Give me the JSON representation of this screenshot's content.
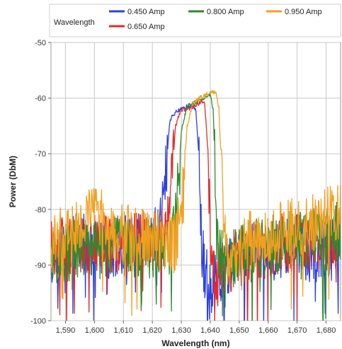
{
  "chart_data": {
    "type": "line",
    "title": "",
    "xlabel": "Wavelength (nm)",
    "ylabel": "Power (DbM)",
    "xlim": [
      1585,
      1685
    ],
    "ylim": [
      -100,
      -50
    ],
    "x_ticks": [
      1590,
      1600,
      1610,
      1620,
      1630,
      1640,
      1650,
      1660,
      1670,
      1680
    ],
    "x_tick_labels": [
      "1,590",
      "1,600",
      "1,610",
      "1,620",
      "1,630",
      "1,640",
      "1,650",
      "1,660",
      "1,670",
      "1,680"
    ],
    "y_ticks": [
      -50,
      -60,
      -70,
      -80,
      -90,
      -100
    ],
    "y_tick_labels": [
      "-50",
      "-60",
      "-70",
      "-80",
      "-90",
      "-100"
    ],
    "grid": true,
    "legend": {
      "title": "Wavelength",
      "placement": "top"
    },
    "series": [
      {
        "name": "0.450 Amp",
        "color": "#2c3fe0",
        "x": [
          1585,
          1595,
          1605,
          1615,
          1622,
          1624,
          1626,
          1628,
          1630,
          1632,
          1634,
          1635,
          1636,
          1637,
          1638,
          1640,
          1645,
          1655,
          1665,
          1675,
          1685
        ],
        "y": [
          -88,
          -86,
          -87,
          -86,
          -85,
          -78,
          -64,
          -62.5,
          -62,
          -61.5,
          -61.5,
          -62,
          -70,
          -86,
          -91,
          -95,
          -90,
          -88,
          -87,
          -88,
          -87
        ]
      },
      {
        "name": "0.650 Amp",
        "color": "#e02b2b",
        "x": [
          1585,
          1595,
          1605,
          1615,
          1624,
          1626,
          1628,
          1630,
          1632,
          1634,
          1636,
          1637,
          1638,
          1639,
          1640,
          1641,
          1645,
          1655,
          1665,
          1675,
          1685
        ],
        "y": [
          -87,
          -86,
          -86,
          -86,
          -85,
          -80,
          -65,
          -62,
          -62,
          -61.5,
          -61,
          -60.5,
          -60.5,
          -68,
          -84,
          -92,
          -90,
          -87,
          -86,
          -86,
          -85
        ]
      },
      {
        "name": "0.800 Amp",
        "color": "#2e8b2e",
        "x": [
          1585,
          1595,
          1605,
          1615,
          1626,
          1628,
          1630,
          1632,
          1634,
          1636,
          1638,
          1640,
          1641,
          1642,
          1643,
          1645,
          1655,
          1665,
          1675,
          1685
        ],
        "y": [
          -88,
          -87,
          -87,
          -87,
          -87,
          -82,
          -66,
          -61.5,
          -61,
          -60.5,
          -60,
          -59.5,
          -62,
          -78,
          -88,
          -90,
          -87,
          -86,
          -85,
          -84
        ]
      },
      {
        "name": "0.950 Amp",
        "color": "#f0a020",
        "x": [
          1585,
          1590,
          1595,
          1600,
          1605,
          1615,
          1628,
          1630,
          1632,
          1634,
          1636,
          1638,
          1640,
          1642,
          1643,
          1644,
          1645,
          1646,
          1655,
          1665,
          1675,
          1685
        ],
        "y": [
          -86,
          -84,
          -82,
          -80,
          -84,
          -85,
          -86,
          -80,
          -65,
          -61,
          -60,
          -59.5,
          -59,
          -59,
          -62,
          -75,
          -86,
          -88,
          -85,
          -84,
          -82,
          -81
        ]
      }
    ]
  }
}
